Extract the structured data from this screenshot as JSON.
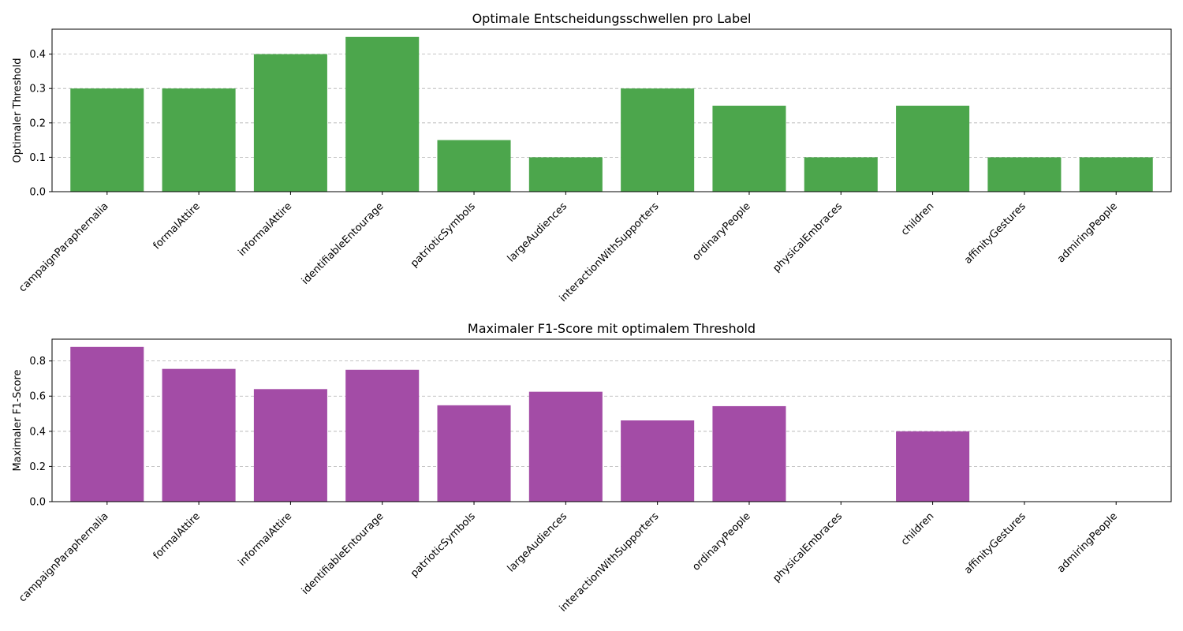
{
  "chart_data": [
    {
      "type": "bar",
      "title": "Optimale Entscheidungsschwellen pro Label",
      "xlabel": "",
      "ylabel": "Optimaler Threshold",
      "categories": [
        "campaignParaphernalia",
        "formalAttire",
        "informalAttire",
        "identifiableEntourage",
        "patrioticSymbols",
        "largeAudiences",
        "interactionWithSupporters",
        "ordinaryPeople",
        "physicalEmbraces",
        "children",
        "affinityGestures",
        "admiringPeople"
      ],
      "values": [
        0.3,
        0.3,
        0.4,
        0.45,
        0.15,
        0.1,
        0.3,
        0.25,
        0.1,
        0.25,
        0.1,
        0.1
      ],
      "yticks": [
        0.0,
        0.1,
        0.2,
        0.3,
        0.4
      ],
      "ytick_labels": [
        "0.0",
        "0.1",
        "0.2",
        "0.3",
        "0.4"
      ],
      "ylim": [
        0,
        0.4725
      ],
      "grid": true,
      "color": "#4ca64c"
    },
    {
      "type": "bar",
      "title": "Maximaler F1-Score mit optimalem Threshold",
      "xlabel": "",
      "ylabel": "Maximaler F1-Score",
      "categories": [
        "campaignParaphernalia",
        "formalAttire",
        "informalAttire",
        "identifiableEntourage",
        "patrioticSymbols",
        "largeAudiences",
        "interactionWithSupporters",
        "ordinaryPeople",
        "physicalEmbraces",
        "children",
        "affinityGestures",
        "admiringPeople"
      ],
      "values": [
        0.88,
        0.755,
        0.64,
        0.75,
        0.548,
        0.625,
        0.462,
        0.543,
        0.0,
        0.4,
        0.0,
        0.0
      ],
      "yticks": [
        0.0,
        0.2,
        0.4,
        0.6,
        0.8
      ],
      "ytick_labels": [
        "0.0",
        "0.2",
        "0.4",
        "0.6",
        "0.8"
      ],
      "ylim": [
        0,
        0.924
      ],
      "grid": true,
      "color": "#a34ca6"
    }
  ]
}
